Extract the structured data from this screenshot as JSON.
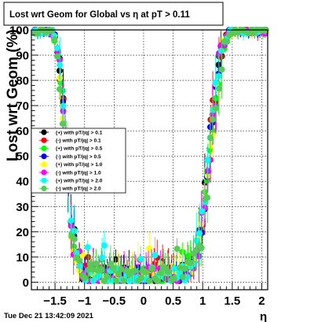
{
  "timestamp": "Tue Dec 21 13:42:09 2021",
  "chart_data": {
    "type": "scatter",
    "title": "Lost wrt Geom for Global vs   η at pT > 0.11",
    "xlabel": "η",
    "ylabel": "Lost wrt Geom (%)",
    "xlim": [
      -1.9,
      2.1
    ],
    "ylim": [
      -3,
      100
    ],
    "grid": true,
    "x_ticks": [
      -1.5,
      -1,
      -0.5,
      0,
      0.5,
      1,
      1.5,
      2
    ],
    "x_tick_labels": [
      "−1.5",
      "−1",
      "−0.5",
      "0",
      "0.5",
      "1",
      "1.5",
      "2"
    ],
    "y_ticks": [
      0,
      10,
      20,
      30,
      40,
      50,
      60,
      70,
      80,
      90,
      100
    ],
    "y_tick_labels": [
      "0",
      "10",
      "20",
      "30",
      "40",
      "50",
      "60",
      "70",
      "80",
      "90",
      "100"
    ],
    "legend_position": "left-middle",
    "series": [
      {
        "name": "(+) with pT/|q| > 0.1",
        "color": "#000000",
        "seed": 11,
        "offset": 0.0
      },
      {
        "name": "(-) with pT/|q| > 0.1",
        "color": "#ff0000",
        "seed": 23,
        "offset": -0.3
      },
      {
        "name": "(+) with pT/|q| > 0.5",
        "color": "#00ff00",
        "seed": 37,
        "offset": 0.3
      },
      {
        "name": "(-) with pT/|q| > 0.5",
        "color": "#0000ff",
        "seed": 41,
        "offset": -0.2
      },
      {
        "name": "(+) with pT/|q| > 1.0",
        "color": "#ffff00",
        "seed": 53,
        "offset": 0.5
      },
      {
        "name": "(-) with pT/|q| > 1.0",
        "color": "#ff00ff",
        "seed": 67,
        "offset": 0.2
      },
      {
        "name": "(+) with pT/|q| > 2.0",
        "color": "#00ffff",
        "seed": 79,
        "offset": -0.5
      },
      {
        "name": "(-) with pT/|q| > 2.0",
        "color": "#55cc55",
        "seed": 97,
        "offset": 0.6
      }
    ]
  }
}
